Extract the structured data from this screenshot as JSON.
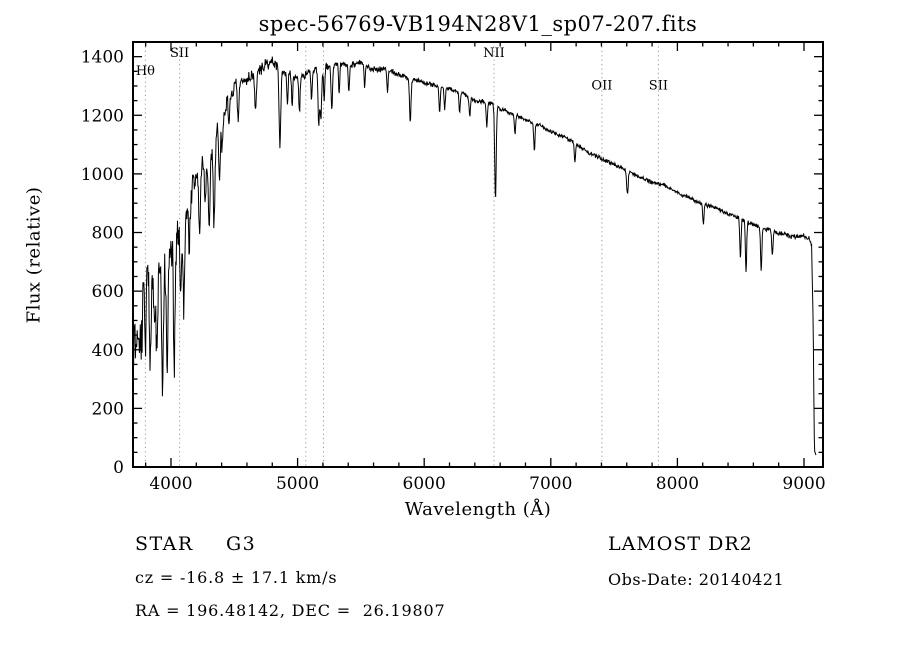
{
  "chart_data": {
    "type": "line",
    "title": "spec-56769-VB194N28V1_sp07-207.fits",
    "xlabel": "Wavelength (Å)",
    "ylabel": "Flux (relative)",
    "xlim": [
      3700,
      9150
    ],
    "ylim": [
      0,
      1450
    ],
    "xticks": [
      4000,
      5000,
      6000,
      7000,
      8000,
      9000
    ],
    "x_minor_step": 200,
    "yticks": [
      0,
      200,
      400,
      600,
      800,
      1000,
      1200,
      1400
    ],
    "y_minor_step": 50,
    "grid": false,
    "legend": "none",
    "line_color": "#000000",
    "marker_line_color": "#999999",
    "markers": [
      {
        "label": "Hθ",
        "x": 3798,
        "label_y": 1338
      },
      {
        "label": "SII",
        "x": 4068,
        "label_y": 1398
      },
      {
        "label": "",
        "x": 5065,
        "label_y": null
      },
      {
        "label": "",
        "x": 5205,
        "label_y": null
      },
      {
        "label": "NII",
        "x": 6551,
        "label_y": 1398
      },
      {
        "label": "OII",
        "x": 7404,
        "label_y": 1288
      },
      {
        "label": "SII",
        "x": 7850,
        "label_y": 1288
      }
    ],
    "continuum": [
      [
        3700,
        470
      ],
      [
        3750,
        525
      ],
      [
        3800,
        570
      ],
      [
        3850,
        605
      ],
      [
        3900,
        640
      ],
      [
        3950,
        680
      ],
      [
        4000,
        730
      ],
      [
        4050,
        800
      ],
      [
        4100,
        870
      ],
      [
        4150,
        930
      ],
      [
        4200,
        990
      ],
      [
        4250,
        1045
      ],
      [
        4300,
        1095
      ],
      [
        4350,
        1145
      ],
      [
        4400,
        1195
      ],
      [
        4450,
        1240
      ],
      [
        4500,
        1280
      ],
      [
        4550,
        1312
      ],
      [
        4600,
        1333
      ],
      [
        4650,
        1352
      ],
      [
        4700,
        1365
      ],
      [
        4750,
        1374
      ],
      [
        4800,
        1374
      ],
      [
        4850,
        1364
      ],
      [
        4900,
        1350
      ],
      [
        4950,
        1340
      ],
      [
        5000,
        1336
      ],
      [
        5050,
        1342
      ],
      [
        5100,
        1352
      ],
      [
        5150,
        1360
      ],
      [
        5200,
        1366
      ],
      [
        5300,
        1375
      ],
      [
        5400,
        1376
      ],
      [
        5500,
        1370
      ],
      [
        5600,
        1362
      ],
      [
        5700,
        1353
      ],
      [
        5800,
        1343
      ],
      [
        5900,
        1331
      ],
      [
        6000,
        1318
      ],
      [
        6100,
        1304
      ],
      [
        6200,
        1289
      ],
      [
        6300,
        1273
      ],
      [
        6400,
        1257
      ],
      [
        6500,
        1240
      ],
      [
        6600,
        1222
      ],
      [
        6700,
        1203
      ],
      [
        6800,
        1183
      ],
      [
        6900,
        1163
      ],
      [
        7000,
        1142
      ],
      [
        7100,
        1121
      ],
      [
        7200,
        1099
      ],
      [
        7300,
        1077
      ],
      [
        7400,
        1056
      ],
      [
        7500,
        1035
      ],
      [
        7600,
        1015
      ],
      [
        7700,
        996
      ],
      [
        7800,
        977
      ],
      [
        7900,
        958
      ],
      [
        8000,
        938
      ],
      [
        8100,
        918
      ],
      [
        8200,
        898
      ],
      [
        8300,
        878
      ],
      [
        8400,
        860
      ],
      [
        8500,
        845
      ],
      [
        8600,
        830
      ],
      [
        8700,
        816
      ],
      [
        8800,
        803
      ],
      [
        8900,
        792
      ],
      [
        9000,
        783
      ],
      [
        9040,
        776
      ],
      [
        9060,
        755
      ],
      [
        9072,
        500
      ],
      [
        9082,
        60
      ],
      [
        9095,
        40
      ]
    ],
    "absorption_lines": [
      [
        3727,
        140,
        5
      ],
      [
        3750,
        180,
        6
      ],
      [
        3770,
        160,
        5
      ],
      [
        3798,
        230,
        6
      ],
      [
        3835,
        270,
        6
      ],
      [
        3870,
        200,
        6
      ],
      [
        3889,
        290,
        6
      ],
      [
        3933,
        430,
        7
      ],
      [
        3969,
        390,
        7
      ],
      [
        4026,
        480,
        6
      ],
      [
        4077,
        230,
        6
      ],
      [
        4101,
        310,
        7
      ],
      [
        4144,
        170,
        6
      ],
      [
        4226,
        230,
        6
      ],
      [
        4271,
        160,
        5
      ],
      [
        4302,
        270,
        8
      ],
      [
        4340,
        290,
        7
      ],
      [
        4383,
        210,
        6
      ],
      [
        4405,
        130,
        5
      ],
      [
        4457,
        110,
        5
      ],
      [
        4531,
        130,
        6
      ],
      [
        4668,
        140,
        6
      ],
      [
        4861,
        265,
        7
      ],
      [
        4920,
        110,
        5
      ],
      [
        4957,
        100,
        5
      ],
      [
        5015,
        120,
        5
      ],
      [
        5110,
        100,
        5
      ],
      [
        5167,
        185,
        6
      ],
      [
        5184,
        165,
        6
      ],
      [
        5210,
        110,
        5
      ],
      [
        5270,
        150,
        6
      ],
      [
        5328,
        100,
        5
      ],
      [
        5405,
        90,
        5
      ],
      [
        5530,
        80,
        5
      ],
      [
        5710,
        80,
        5
      ],
      [
        5890,
        150,
        6
      ],
      [
        6122,
        85,
        5
      ],
      [
        6162,
        75,
        5
      ],
      [
        6280,
        75,
        5
      ],
      [
        6360,
        65,
        5
      ],
      [
        6495,
        85,
        5
      ],
      [
        6563,
        315,
        6
      ],
      [
        6717,
        60,
        5
      ],
      [
        6870,
        95,
        5
      ],
      [
        7190,
        65,
        5
      ],
      [
        7605,
        85,
        6
      ],
      [
        8205,
        70,
        5
      ],
      [
        8498,
        135,
        5
      ],
      [
        8542,
        175,
        5
      ],
      [
        8662,
        155,
        5
      ],
      [
        8750,
        85,
        5
      ]
    ],
    "noise_profile": [
      [
        3700,
        112
      ],
      [
        3800,
        106
      ],
      [
        3900,
        100
      ],
      [
        4000,
        94
      ],
      [
        4100,
        84
      ],
      [
        4200,
        70
      ],
      [
        4300,
        56
      ],
      [
        4400,
        45
      ],
      [
        4500,
        36
      ],
      [
        4600,
        30
      ],
      [
        4700,
        25
      ],
      [
        4850,
        21
      ],
      [
        5000,
        18
      ],
      [
        5300,
        16
      ],
      [
        5600,
        13
      ],
      [
        6000,
        11
      ],
      [
        6500,
        10
      ],
      [
        7000,
        9
      ],
      [
        7500,
        9
      ],
      [
        8000,
        9
      ],
      [
        8500,
        10
      ],
      [
        9000,
        10
      ]
    ],
    "noise_seed": 7
  },
  "annotations": {
    "class": "STAR",
    "subclass": "G3",
    "survey": "LAMOST DR2",
    "cz": "cz = -16.8 ± 17.1 km/s",
    "obs_date": "Obs-Date: 20140421",
    "radec": "RA = 196.48142, DEC =  26.19807"
  }
}
